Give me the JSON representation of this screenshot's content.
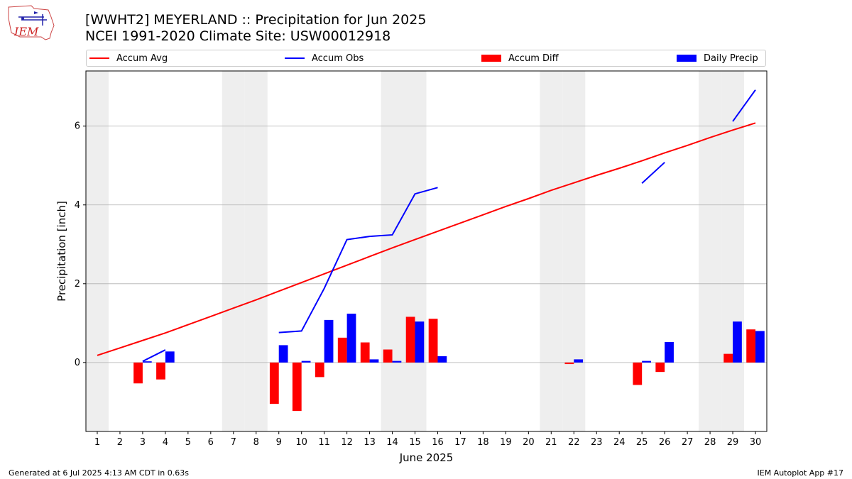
{
  "header": {
    "title_line1": "[WWHT2] MEYERLAND :: Precipitation for Jun 2025",
    "title_line2": "NCEI 1991-2020 Climate Site: USW00012918",
    "logo_text": "IEM"
  },
  "footer": {
    "generated": "Generated at 6 Jul 2025 4:13 AM CDT in 0.63s",
    "app": "IEM Autoplot App #17"
  },
  "colors": {
    "avg": "#ff0000",
    "obs": "#0000ff",
    "diff": "#ff0000",
    "daily": "#0000ff",
    "weekend": "#eeeeee",
    "grid": "#b0b0b0"
  },
  "chart_data": {
    "type": "bar",
    "xlabel": "June 2025",
    "ylabel": "Precipitation [inch]",
    "xlim": [
      0.5,
      30.5
    ],
    "ylim": [
      -1.75,
      7.4
    ],
    "yticks": [
      0,
      2,
      4,
      6
    ],
    "grid": "horizontal",
    "legend_placement": "top",
    "legend": [
      "Accum Avg",
      "Accum Obs",
      "Accum Diff",
      "Daily Precip"
    ],
    "days": [
      1,
      2,
      3,
      4,
      5,
      6,
      7,
      8,
      9,
      10,
      11,
      12,
      13,
      14,
      15,
      16,
      17,
      18,
      19,
      20,
      21,
      22,
      23,
      24,
      25,
      26,
      27,
      28,
      29,
      30
    ],
    "weekend_days": [
      1,
      7,
      8,
      14,
      15,
      21,
      22,
      28,
      29
    ],
    "accum_avg": [
      0.18,
      0.37,
      0.56,
      0.75,
      0.96,
      1.17,
      1.38,
      1.59,
      1.81,
      2.03,
      2.25,
      2.47,
      2.69,
      2.91,
      3.12,
      3.33,
      3.54,
      3.75,
      3.96,
      4.16,
      4.37,
      4.56,
      4.75,
      4.93,
      5.12,
      5.32,
      5.51,
      5.71,
      5.9,
      6.08
    ],
    "accum_obs_segments": [
      {
        "days": [
          3,
          4
        ],
        "values": [
          0.03,
          0.32
        ]
      },
      {
        "days": [
          9,
          10,
          11,
          12,
          13,
          14,
          15,
          16
        ],
        "values": [
          0.76,
          0.8,
          1.88,
          3.12,
          3.2,
          3.24,
          4.28,
          4.44
        ]
      },
      {
        "days": [
          25,
          26
        ],
        "values": [
          4.55,
          5.08
        ]
      },
      {
        "days": [
          29,
          30
        ],
        "values": [
          6.12,
          6.92
        ]
      }
    ],
    "accum_diff": [
      0,
      0,
      -0.53,
      -0.43,
      0,
      0,
      0,
      0,
      -1.05,
      -1.23,
      -0.37,
      0.63,
      0.51,
      0.33,
      1.16,
      1.11,
      0,
      0,
      0,
      0,
      0,
      -0.04,
      0,
      0,
      -0.57,
      -0.24,
      0,
      0,
      0.22,
      0.84
    ],
    "daily_precip": [
      0,
      0,
      0.03,
      0.28,
      0,
      0,
      0,
      0,
      0.44,
      0.04,
      1.08,
      1.24,
      0.08,
      0.04,
      1.04,
      0.16,
      0,
      0,
      0,
      0,
      0,
      0.08,
      0,
      0,
      0.04,
      0.52,
      0,
      0,
      1.04,
      0.8
    ]
  }
}
